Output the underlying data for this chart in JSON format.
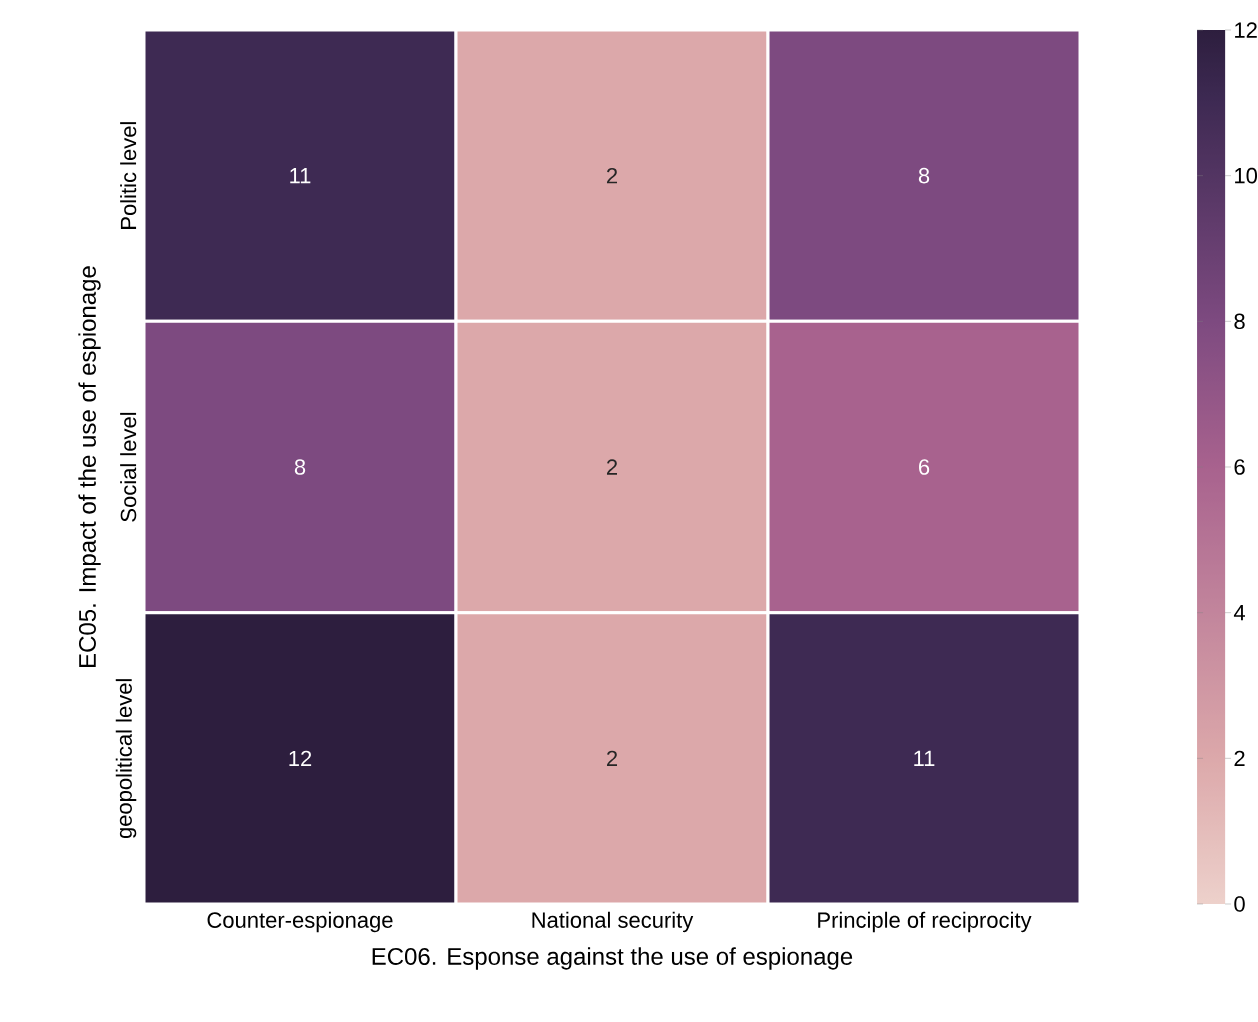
{
  "chart_data": {
    "type": "heatmap",
    "xlabel": "EC06. Esponse against the use of espionage",
    "ylabel": "EC05. Impact of the use of espionage",
    "categories": [
      "Counter-espionage",
      "National security",
      "Principle of reciprocity"
    ],
    "y_categories": [
      "Politic level",
      "Social level",
      "geopolitical level"
    ],
    "cells": [
      [
        11,
        2,
        8
      ],
      [
        8,
        2,
        6
      ],
      [
        12,
        2,
        11
      ]
    ],
    "clim": [
      0,
      12
    ],
    "cticks": [
      0,
      2,
      4,
      6,
      8,
      10,
      12
    ],
    "data_labels": true
  }
}
